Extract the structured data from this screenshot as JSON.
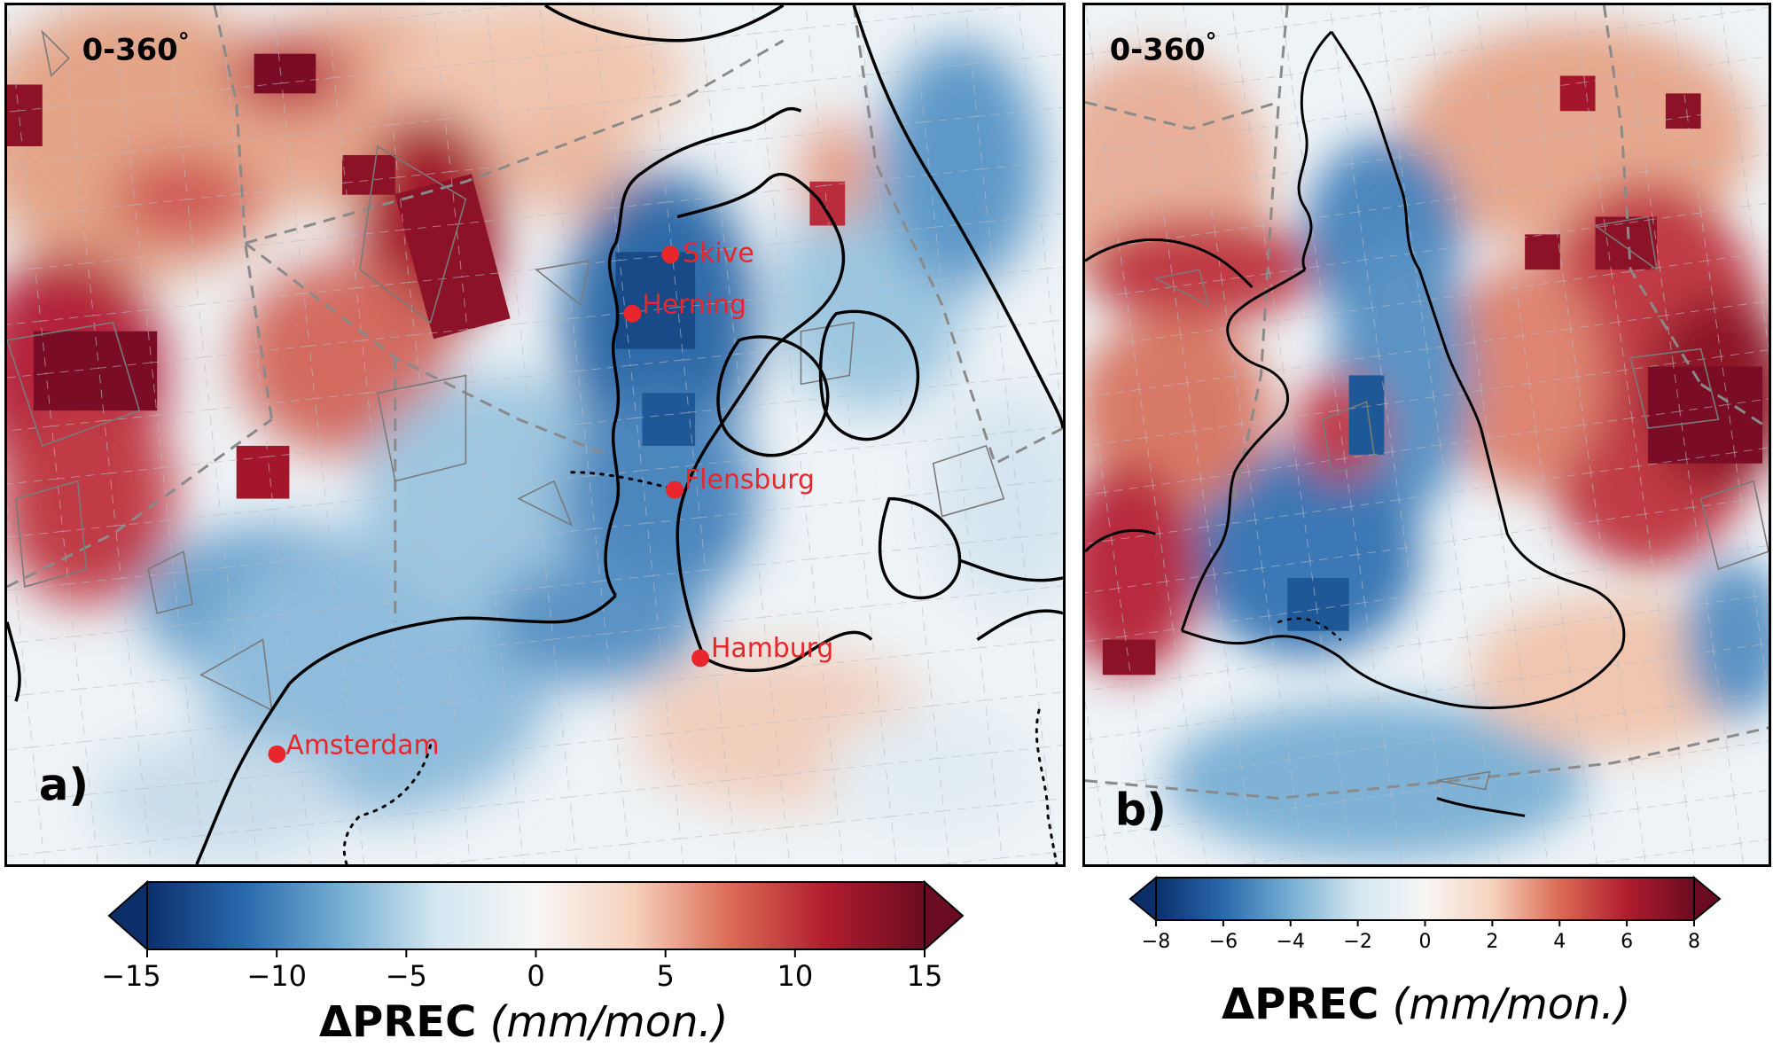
{
  "panels": [
    {
      "id": "a",
      "letter": "a)",
      "period_label": "0-360",
      "period_degree": "°",
      "cities": [
        "Skive",
        "Herning",
        "Flensburg",
        "Hamburg",
        "Amsterdam"
      ],
      "colorbar": {
        "vmin": -15,
        "vmax": 15,
        "ticks": [
          -15,
          -10,
          -5,
          0,
          5,
          10,
          15
        ],
        "tick_labels": [
          "−15",
          "−10",
          "−5",
          "0",
          "5",
          "10",
          "15"
        ],
        "label_symbol": "ΔPREC",
        "label_unit": "(mm/mon.)",
        "extend": "both"
      }
    },
    {
      "id": "b",
      "letter": "b)",
      "period_label": "0-360",
      "period_degree": "°",
      "cities": [],
      "colorbar": {
        "vmin": -8,
        "vmax": 8,
        "ticks": [
          -8,
          -6,
          -4,
          -2,
          0,
          2,
          4,
          6,
          8
        ],
        "tick_labels": [
          "−8",
          "−6",
          "−4",
          "−2",
          "0",
          "2",
          "4",
          "6",
          "8"
        ],
        "label_symbol": "ΔPREC",
        "label_unit": "(mm/mon.)",
        "extend": "both"
      }
    }
  ],
  "colormap": "RdBu_r",
  "colors": {
    "city_marker": "#e8262b",
    "coastline": "#000000",
    "border": "#8a8a8a",
    "wind_farm_outline": "#7a7a7a",
    "colormap_stops": [
      "#0b2f6b",
      "#2a69ac",
      "#76afd3",
      "#d5e7f1",
      "#f7f6f4",
      "#f6d2bd",
      "#db6b55",
      "#b01c2e",
      "#6a0b21"
    ]
  }
}
